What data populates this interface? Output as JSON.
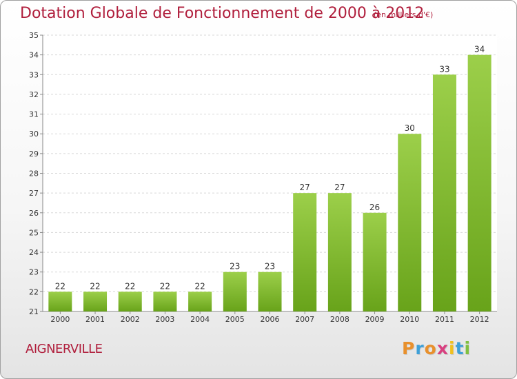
{
  "header": {
    "title": "Dotation Globale de Fonctionnement de 2000 à 2012",
    "subtitle": "(en milliers d'€)"
  },
  "footer": {
    "commune": "AIGNERVILLE",
    "logo_letters": [
      "P",
      "r",
      "o",
      "x",
      "i",
      "t",
      "i"
    ],
    "logo_colors": [
      "#e8902c",
      "#3da0d8",
      "#e8902c",
      "#d84080",
      "#f0c020",
      "#3da0d8",
      "#80c040"
    ]
  },
  "chart_data": {
    "type": "bar",
    "title": "Dotation Globale de Fonctionnement de 2000 à 2012",
    "subtitle": "(en milliers d'€)",
    "categories": [
      "2000",
      "2001",
      "2002",
      "2003",
      "2004",
      "2005",
      "2006",
      "2007",
      "2008",
      "2009",
      "2010",
      "2011",
      "2012"
    ],
    "values": [
      22,
      22,
      22,
      22,
      22,
      23,
      23,
      27,
      27,
      26,
      30,
      33,
      34
    ],
    "ylim": [
      21,
      35
    ],
    "yticks": [
      21,
      22,
      23,
      24,
      25,
      26,
      27,
      28,
      29,
      30,
      31,
      32,
      33,
      34,
      35
    ],
    "grid": true,
    "bar_color_top": "#9ccf4a",
    "bar_color_bottom": "#68a31a"
  }
}
